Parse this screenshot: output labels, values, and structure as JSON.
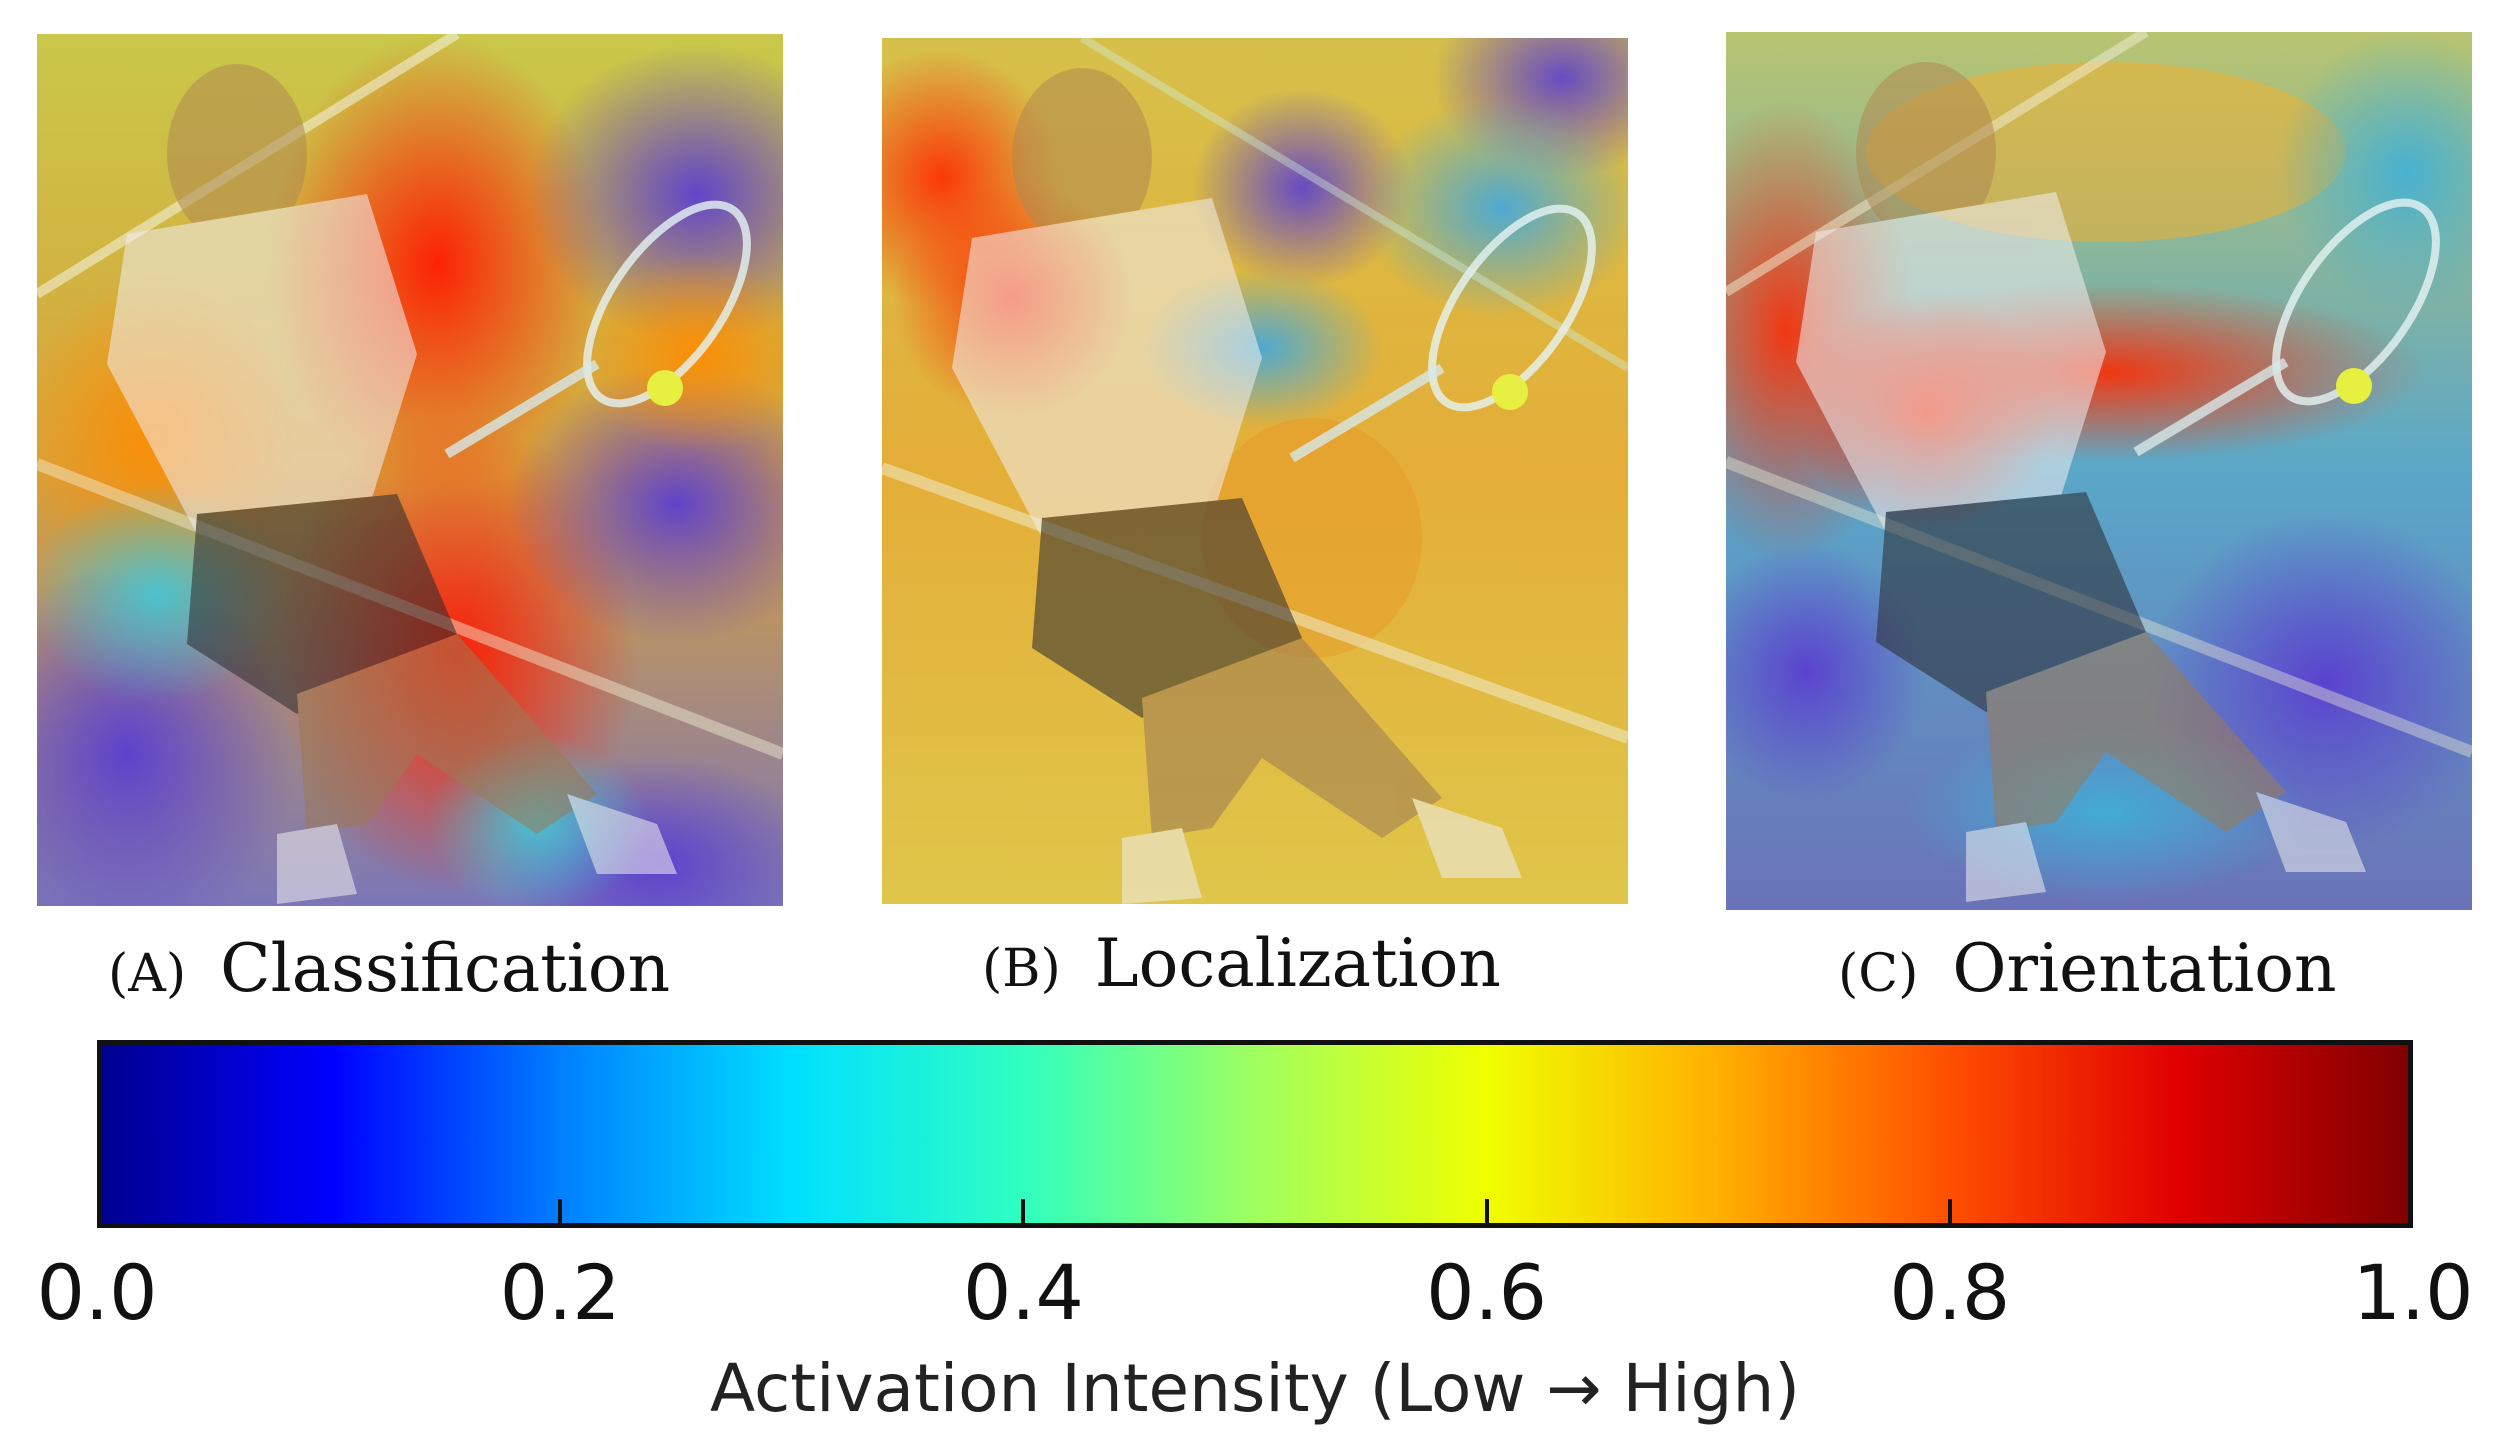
{
  "panels": [
    {
      "letter": "(A)",
      "title": "Classification",
      "photo_alt": "Tennis player backhand with activation heatmap overlay (classification)"
    },
    {
      "letter": "(B)",
      "title": "Localization",
      "photo_alt": "Tennis player backhand with activation heatmap overlay (localization)"
    },
    {
      "letter": "(C)",
      "title": "Orientation",
      "photo_alt": "Tennis player backhand with activation heatmap overlay (orientation)"
    }
  ],
  "colorbar": {
    "colormap": "jet",
    "stops": [
      "#00008f",
      "#0000ff",
      "#0080ff",
      "#00e0ff",
      "#30ffc0",
      "#a0ff60",
      "#f0ff00",
      "#ffb000",
      "#ff5000",
      "#e00000",
      "#800000"
    ],
    "ticks": [
      "0.0",
      "0.2",
      "0.4",
      "0.6",
      "0.8",
      "1.0"
    ],
    "tick_values": [
      0.0,
      0.2,
      0.4,
      0.6,
      0.8,
      1.0
    ],
    "label": "Activation Intensity (Low → High)"
  }
}
